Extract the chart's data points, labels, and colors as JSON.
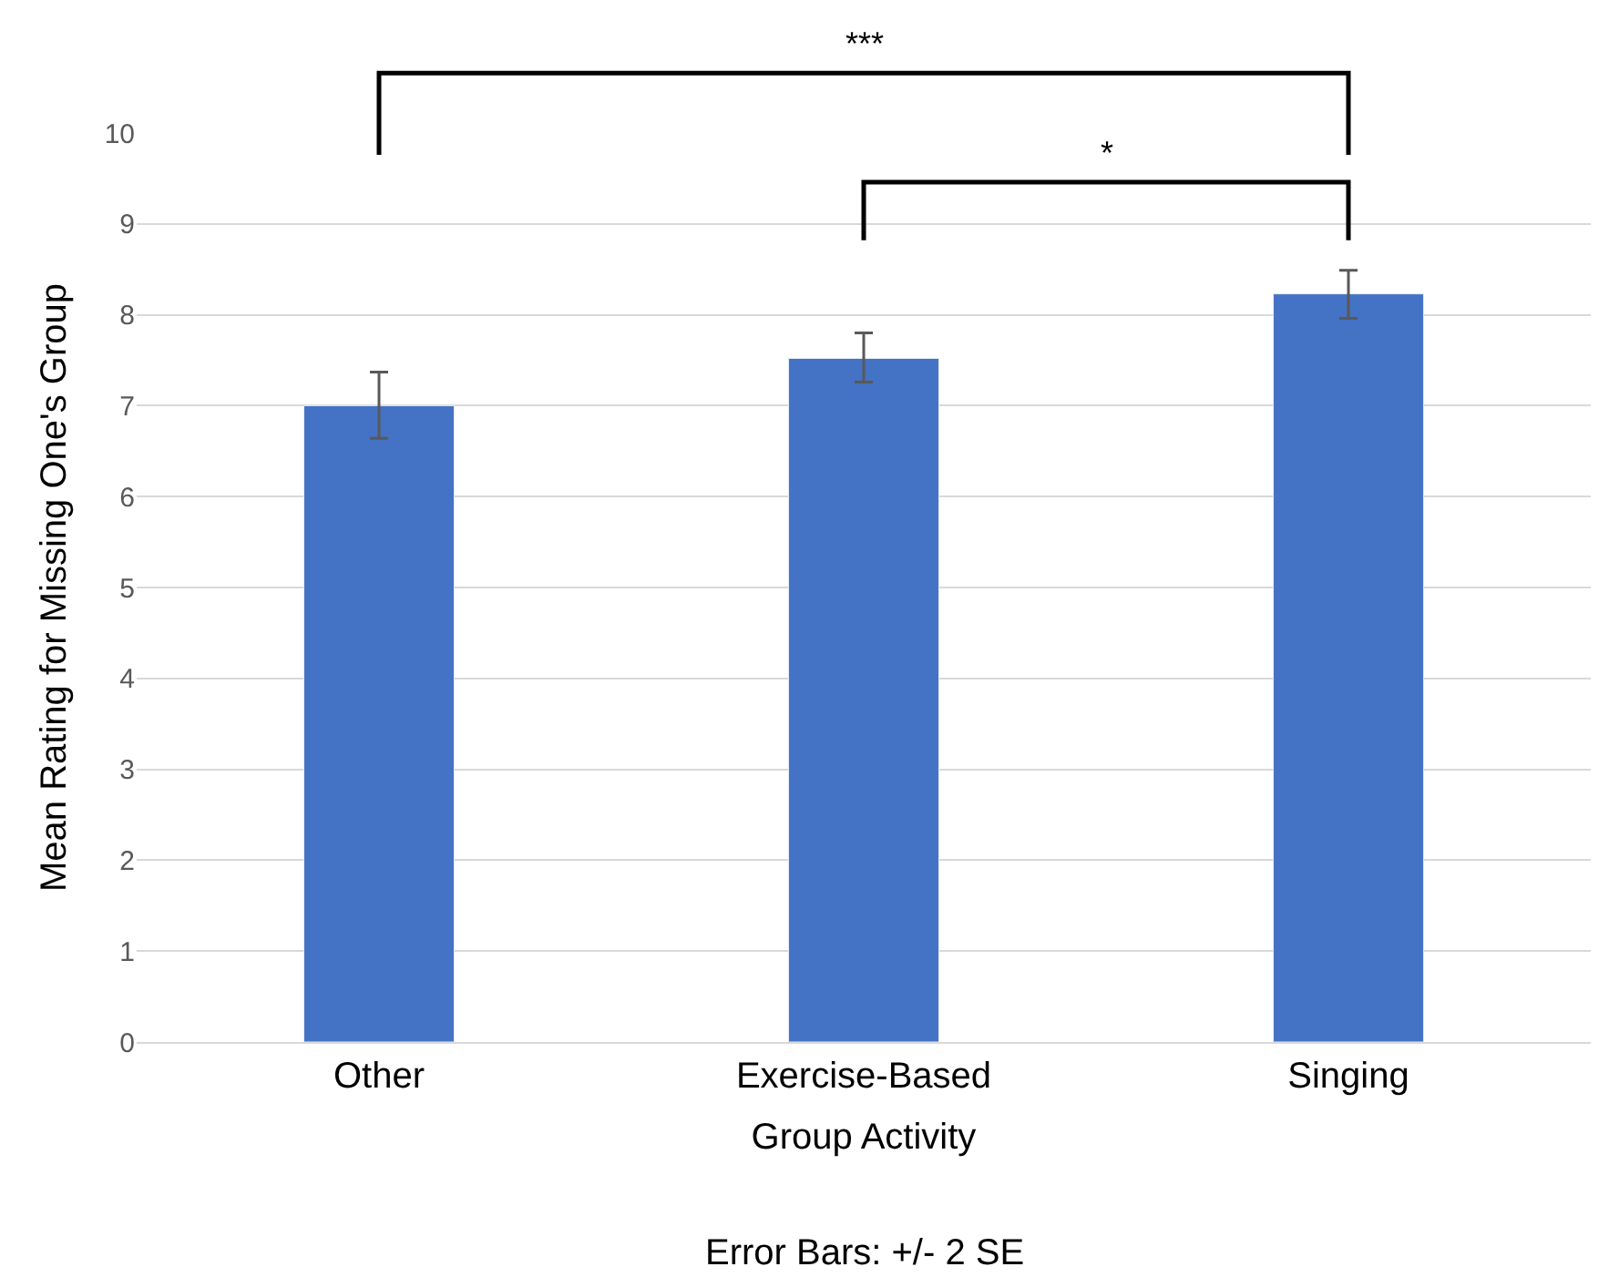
{
  "chart_data": {
    "type": "bar",
    "categories": [
      "Other",
      "Exercise-Based",
      "Singing"
    ],
    "values": [
      7.0,
      7.52,
      8.23
    ],
    "errors": [
      [
        6.64,
        7.37
      ],
      [
        7.26,
        7.8
      ],
      [
        7.96,
        8.49
      ]
    ],
    "color": "#4472c4",
    "xlabel": "Group Activity",
    "ylabel": "Mean Rating for Missing One's Group",
    "ylim": [
      0,
      10
    ],
    "yticks": [
      0,
      1,
      2,
      3,
      4,
      5,
      6,
      7,
      8,
      9,
      10
    ],
    "grid": "y",
    "annotations": [
      "***",
      "*",
      "Error Bars: +/- 2 SE"
    ]
  }
}
